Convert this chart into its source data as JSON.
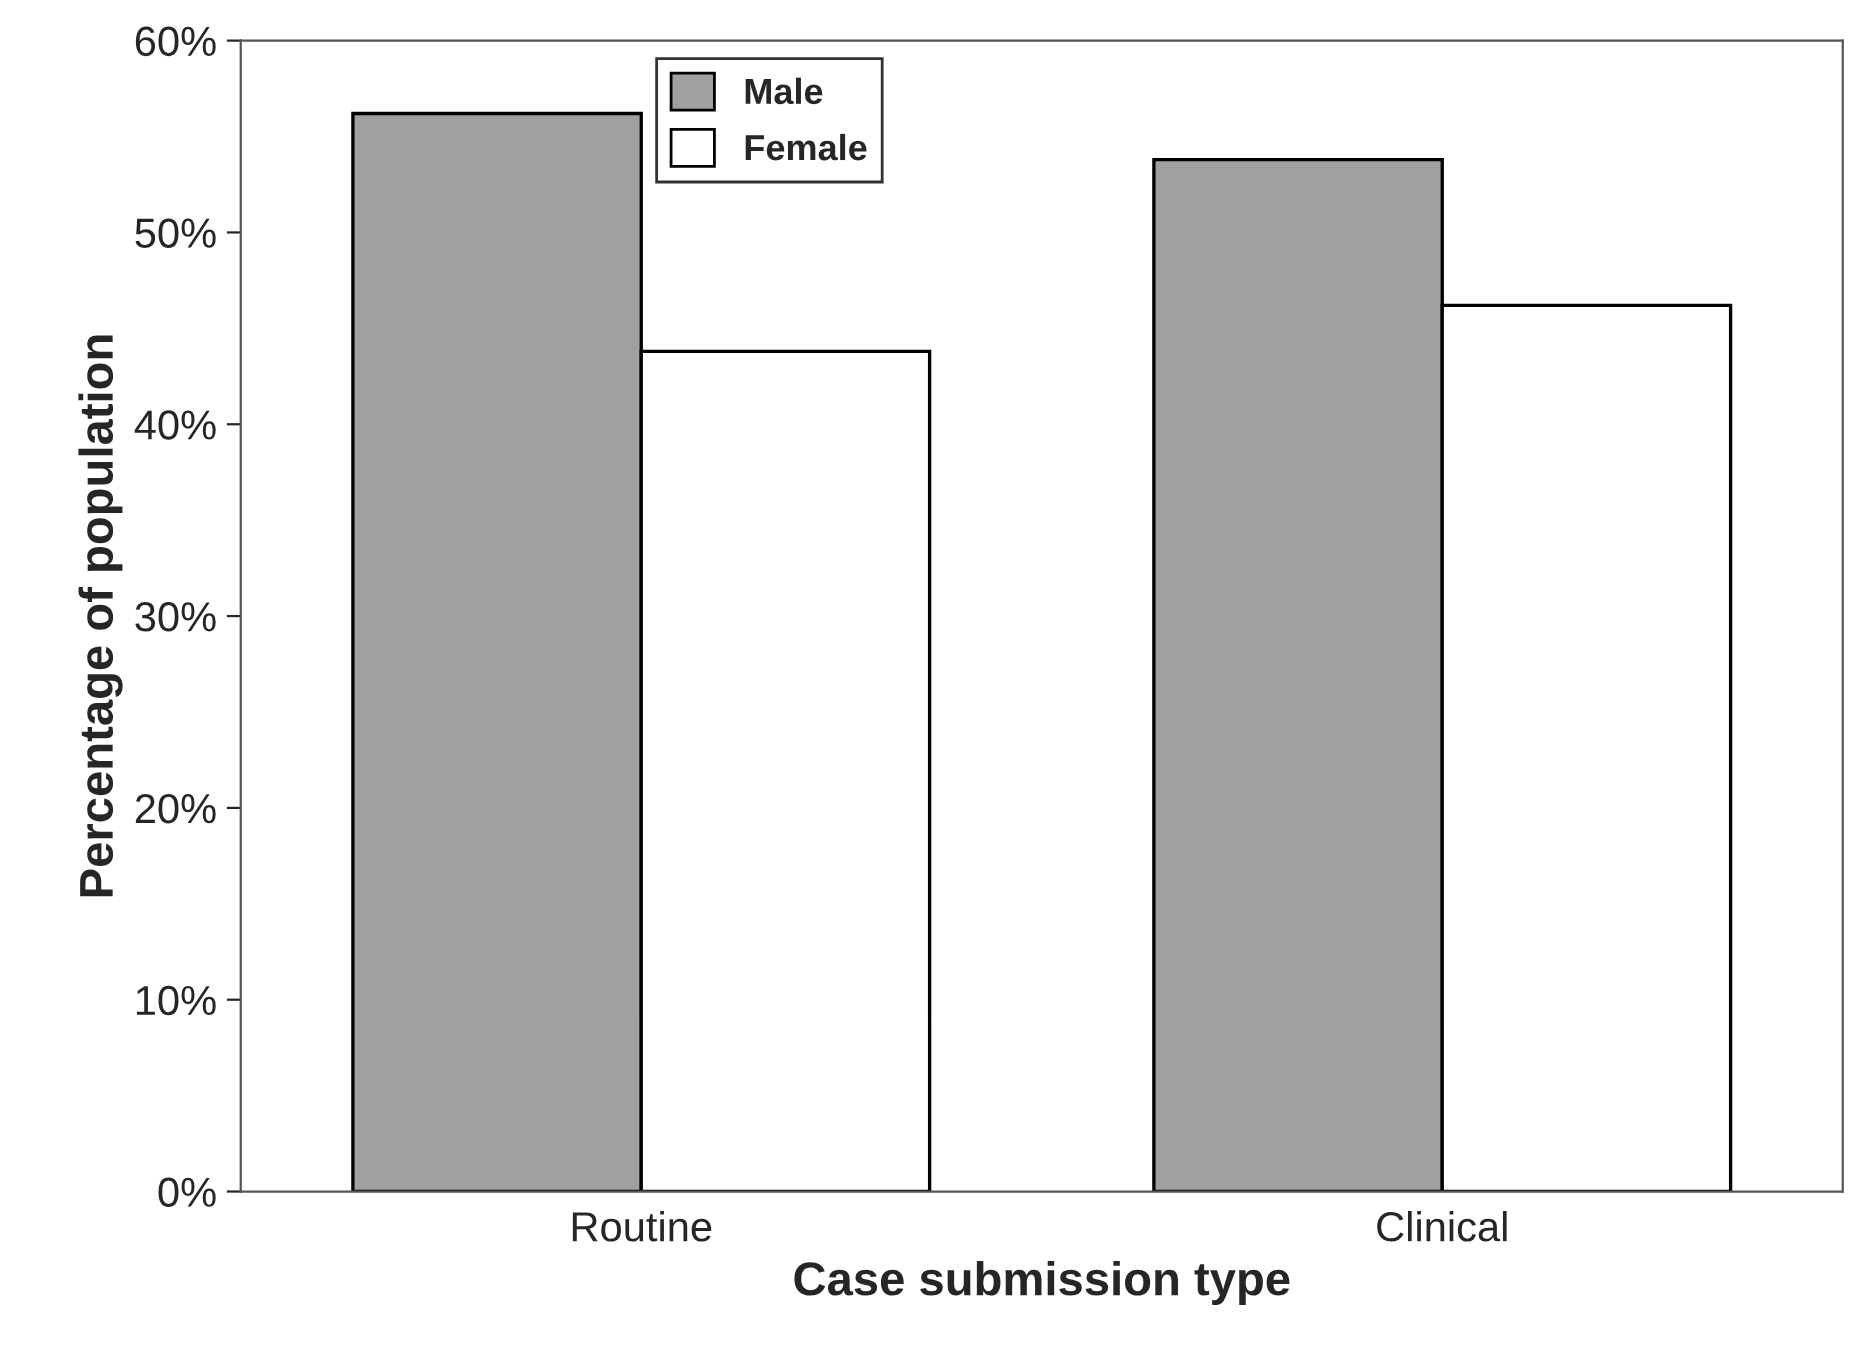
{
  "chart_data": {
    "type": "bar",
    "xlabel": "Case submission type",
    "ylabel": "Percentage of population",
    "categories": [
      "Routine",
      "Clinical"
    ],
    "series": [
      {
        "name": "Male",
        "color": "#a0a0a0",
        "values": [
          56.2,
          53.8
        ]
      },
      {
        "name": "Female",
        "color": "#ffffff",
        "values": [
          43.8,
          46.2
        ]
      }
    ],
    "ylim": [
      0,
      60
    ],
    "yticks": [
      {
        "value": 0,
        "label": "0%"
      },
      {
        "value": 10,
        "label": "10%"
      },
      {
        "value": 20,
        "label": "20%"
      },
      {
        "value": 30,
        "label": "30%"
      },
      {
        "value": 40,
        "label": "40%"
      },
      {
        "value": 50,
        "label": "50%"
      },
      {
        "value": 60,
        "label": "60%"
      }
    ],
    "legend": "top",
    "grid": false
  }
}
